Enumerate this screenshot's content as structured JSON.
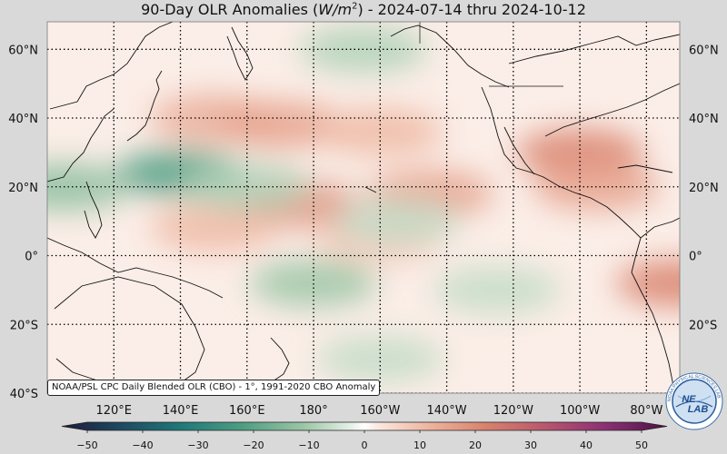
{
  "title": {
    "prefix": "90-Day OLR Anomalies (",
    "unit_base": "W/m",
    "unit_exp": "2",
    "suffix": ") - 2024-07-14 thru 2024-10-12"
  },
  "credit": "NOAA/PSL CPC Daily Blended OLR (CBO) - 1°, 1991-2020 CBO Anomaly",
  "logo_text": {
    "top": "NE",
    "bottom": "LAB",
    "ring": "NOAA PHYSICAL SCIENCES LAB"
  },
  "map": {
    "lon_range": [
      100,
      290
    ],
    "lat_range": [
      -40,
      68
    ],
    "lat_ticks": [
      {
        "value": 60,
        "label": "60°N"
      },
      {
        "value": 40,
        "label": "40°N"
      },
      {
        "value": 20,
        "label": "20°N"
      },
      {
        "value": 0,
        "label": "0°"
      },
      {
        "value": -20,
        "label": "20°S"
      },
      {
        "value": -40,
        "label": "40°S"
      }
    ],
    "lon_ticks": [
      {
        "value": 120,
        "label": "120°E"
      },
      {
        "value": 140,
        "label": "140°E"
      },
      {
        "value": 160,
        "label": "160°E"
      },
      {
        "value": 180,
        "label": "180°"
      },
      {
        "value": 200,
        "label": "160°W"
      },
      {
        "value": 220,
        "label": "140°W"
      },
      {
        "value": 240,
        "label": "120°W"
      },
      {
        "value": 260,
        "label": "100°W"
      },
      {
        "value": 280,
        "label": "80°W"
      }
    ],
    "grid": true
  },
  "colorbar": {
    "min": -50,
    "max": 50,
    "ticks": [
      {
        "value": -50,
        "label": "−50"
      },
      {
        "value": -40,
        "label": "−40"
      },
      {
        "value": -30,
        "label": "−30"
      },
      {
        "value": -20,
        "label": "−20"
      },
      {
        "value": -10,
        "label": "−10"
      },
      {
        "value": 0,
        "label": "0"
      },
      {
        "value": 10,
        "label": "10"
      },
      {
        "value": 20,
        "label": "20"
      },
      {
        "value": 30,
        "label": "30"
      },
      {
        "value": 40,
        "label": "40"
      },
      {
        "value": 50,
        "label": "50"
      }
    ],
    "stops": [
      {
        "value": -50,
        "color": "#1d1a3a"
      },
      {
        "value": -40,
        "color": "#1f4a62"
      },
      {
        "value": -30,
        "color": "#1f7a78"
      },
      {
        "value": -20,
        "color": "#4f9e83"
      },
      {
        "value": -10,
        "color": "#9cc6a6"
      },
      {
        "value": -2,
        "color": "#e9f1ea"
      },
      {
        "value": 0,
        "color": "#ffffff"
      },
      {
        "value": 2,
        "color": "#fbe9e3"
      },
      {
        "value": 10,
        "color": "#eeb8a3"
      },
      {
        "value": 20,
        "color": "#d9826d"
      },
      {
        "value": 30,
        "color": "#b8566f"
      },
      {
        "value": 40,
        "color": "#8b2f73"
      },
      {
        "value": 50,
        "color": "#4b1345"
      }
    ]
  },
  "anomaly_field": [
    {
      "lon": 150,
      "lat": 40,
      "value": 12
    },
    {
      "lon": 170,
      "lat": 38,
      "value": 14
    },
    {
      "lon": 200,
      "lat": 36,
      "value": 10
    },
    {
      "lon": 215,
      "lat": 18,
      "value": 14
    },
    {
      "lon": 175,
      "lat": 15,
      "value": 16
    },
    {
      "lon": 150,
      "lat": 8,
      "value": 10
    },
    {
      "lon": 200,
      "lat": 5,
      "value": 8
    },
    {
      "lon": 260,
      "lat": 30,
      "value": 20
    },
    {
      "lon": 265,
      "lat": 20,
      "value": 14
    },
    {
      "lon": 290,
      "lat": -8,
      "value": 20
    },
    {
      "lon": 140,
      "lat": 24,
      "value": -20
    },
    {
      "lon": 105,
      "lat": 20,
      "value": -12
    },
    {
      "lon": 160,
      "lat": 20,
      "value": -8
    },
    {
      "lon": 180,
      "lat": -8,
      "value": -10
    },
    {
      "lon": 205,
      "lat": 10,
      "value": -6
    },
    {
      "lon": 195,
      "lat": 60,
      "value": -8
    },
    {
      "lon": 235,
      "lat": -10,
      "value": -6
    },
    {
      "lon": 200,
      "lat": -30,
      "value": -6
    }
  ]
}
